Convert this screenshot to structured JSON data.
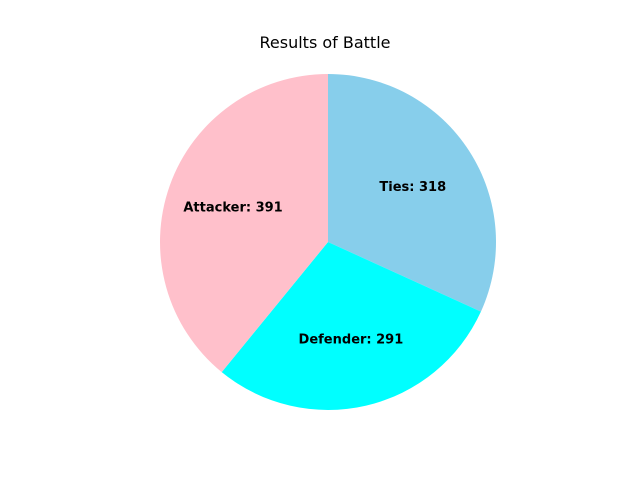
{
  "chart_data": {
    "type": "pie",
    "title": "Results of Battle",
    "categories": [
      "Ties",
      "Defender",
      "Attacker"
    ],
    "values": [
      318,
      291,
      391
    ],
    "labels": [
      "Ties: 318",
      "Defender: 291",
      "Attacker: 391"
    ],
    "colors": [
      "#87ceeb",
      "#00ffff",
      "#ffc0cb"
    ],
    "start_angle_deg": 90,
    "direction": "clockwise",
    "legend": "none",
    "grid": false
  }
}
